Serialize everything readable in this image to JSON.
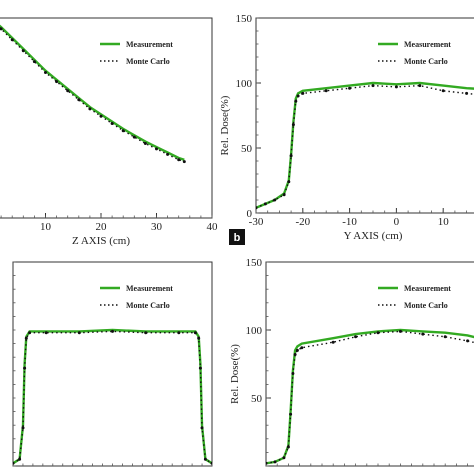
{
  "chart_data": [
    {
      "type": "line",
      "panel": "top-left",
      "xlabel": "Z AXIS (cm)",
      "ylabel": "",
      "xlim": [
        0,
        40
      ],
      "ylim": [
        0,
        110
      ],
      "x_ticks": [
        "0",
        "10",
        "20",
        "30",
        "40"
      ],
      "y_ticks": [],
      "legend_position": "top-right",
      "series": [
        {
          "name": "Measurement",
          "style": "solid",
          "color": "#33aa22",
          "x": [
            0,
            2,
            4,
            6,
            8,
            10,
            12,
            14,
            16,
            18,
            20,
            22,
            24,
            26,
            28,
            30,
            32,
            34,
            35
          ],
          "y": [
            110,
            105,
            99,
            93,
            87,
            81,
            76,
            71,
            66,
            61,
            57,
            53,
            49,
            45.5,
            42,
            39,
            36,
            33,
            32
          ]
        },
        {
          "name": "Monte Carlo",
          "style": "dotted",
          "color": "#111111",
          "x": [
            0,
            2,
            4,
            6,
            8,
            10,
            12,
            14,
            16,
            18,
            20,
            22,
            24,
            26,
            28,
            30,
            32,
            34,
            35
          ],
          "y": [
            110,
            104,
            98,
            92,
            86,
            80,
            75,
            70,
            65,
            60,
            56,
            52,
            48,
            44.5,
            41,
            38,
            35,
            32,
            31
          ]
        }
      ]
    },
    {
      "type": "line",
      "panel": "top-right",
      "panel_letter": "b",
      "xlabel": "Y AXIS (cm)",
      "ylabel": "Rel. Dose(%)",
      "xlim": [
        -30,
        20
      ],
      "ylim": [
        0,
        150
      ],
      "x_ticks": [
        "-30",
        "-20",
        "-10",
        "0",
        "10",
        "2"
      ],
      "y_ticks": [
        "0",
        "50",
        "100",
        "150"
      ],
      "legend_position": "top-right",
      "series": [
        {
          "name": "Measurement",
          "style": "solid",
          "color": "#33aa22",
          "x": [
            -30,
            -28,
            -26,
            -24,
            -23,
            -22.5,
            -22,
            -21.5,
            -21,
            -20,
            -15,
            -10,
            -5,
            0,
            5,
            10,
            15,
            20
          ],
          "y": [
            4,
            7,
            10,
            15,
            25,
            45,
            70,
            88,
            92,
            94,
            96,
            98,
            100,
            99,
            100,
            98,
            96,
            95
          ]
        },
        {
          "name": "Monte Carlo",
          "style": "dotted",
          "color": "#111111",
          "x": [
            -30,
            -28,
            -26,
            -24,
            -23,
            -22.5,
            -22,
            -21.5,
            -21,
            -20,
            -15,
            -10,
            -5,
            0,
            5,
            10,
            15,
            20
          ],
          "y": [
            4,
            7,
            10,
            14,
            24,
            44,
            68,
            86,
            90,
            92,
            94,
            96,
            98,
            97,
            98,
            94,
            92,
            90
          ]
        }
      ]
    },
    {
      "type": "line",
      "panel": "bottom-left",
      "xlabel": "",
      "ylabel": "",
      "xlim": [
        -30,
        30
      ],
      "ylim": [
        0,
        150
      ],
      "x_ticks": [],
      "y_ticks": [],
      "legend_position": "top-right",
      "series": [
        {
          "name": "Measurement",
          "style": "solid",
          "color": "#33aa22",
          "x": [
            -30,
            -28,
            -27,
            -26.5,
            -26,
            -25,
            -20,
            -10,
            0,
            10,
            20,
            25,
            26,
            26.5,
            27,
            28,
            30
          ],
          "y": [
            2,
            5,
            30,
            75,
            95,
            99,
            99,
            99,
            100,
            99,
            99,
            99,
            95,
            75,
            30,
            5,
            2
          ]
        },
        {
          "name": "Monte Carlo",
          "style": "dotted",
          "color": "#111111",
          "x": [
            -30,
            -28,
            -27,
            -26.5,
            -26,
            -25,
            -20,
            -10,
            0,
            10,
            20,
            25,
            26,
            26.5,
            27,
            28,
            30
          ],
          "y": [
            2,
            5,
            28,
            72,
            94,
            98,
            98,
            98,
            99,
            98,
            98,
            98,
            94,
            72,
            28,
            5,
            2
          ]
        }
      ]
    },
    {
      "type": "line",
      "panel": "bottom-right",
      "xlabel": "",
      "ylabel": "Rel. Dose(%)",
      "xlim": [
        -30,
        20
      ],
      "ylim": [
        0,
        150
      ],
      "x_ticks": [],
      "y_ticks": [
        "50",
        "100",
        "150"
      ],
      "legend_position": "top-right",
      "series": [
        {
          "name": "Measurement",
          "style": "solid",
          "color": "#33aa22",
          "x": [
            -30,
            -28,
            -26,
            -25,
            -24.5,
            -24,
            -23.5,
            -23,
            -22,
            -15,
            -10,
            -5,
            0,
            5,
            10,
            15,
            20
          ],
          "y": [
            2,
            3,
            6,
            15,
            40,
            70,
            85,
            88,
            90,
            94,
            97,
            99,
            100,
            99,
            98,
            96,
            92
          ]
        },
        {
          "name": "Monte Carlo",
          "style": "dotted",
          "color": "#111111",
          "x": [
            -30,
            -28,
            -26,
            -25,
            -24.5,
            -24,
            -23.5,
            -23,
            -22,
            -15,
            -10,
            -5,
            0,
            5,
            10,
            15,
            20
          ],
          "y": [
            2,
            3,
            6,
            14,
            38,
            68,
            82,
            85,
            87,
            91,
            95,
            98,
            99,
            97,
            95,
            92,
            88
          ]
        }
      ]
    }
  ]
}
